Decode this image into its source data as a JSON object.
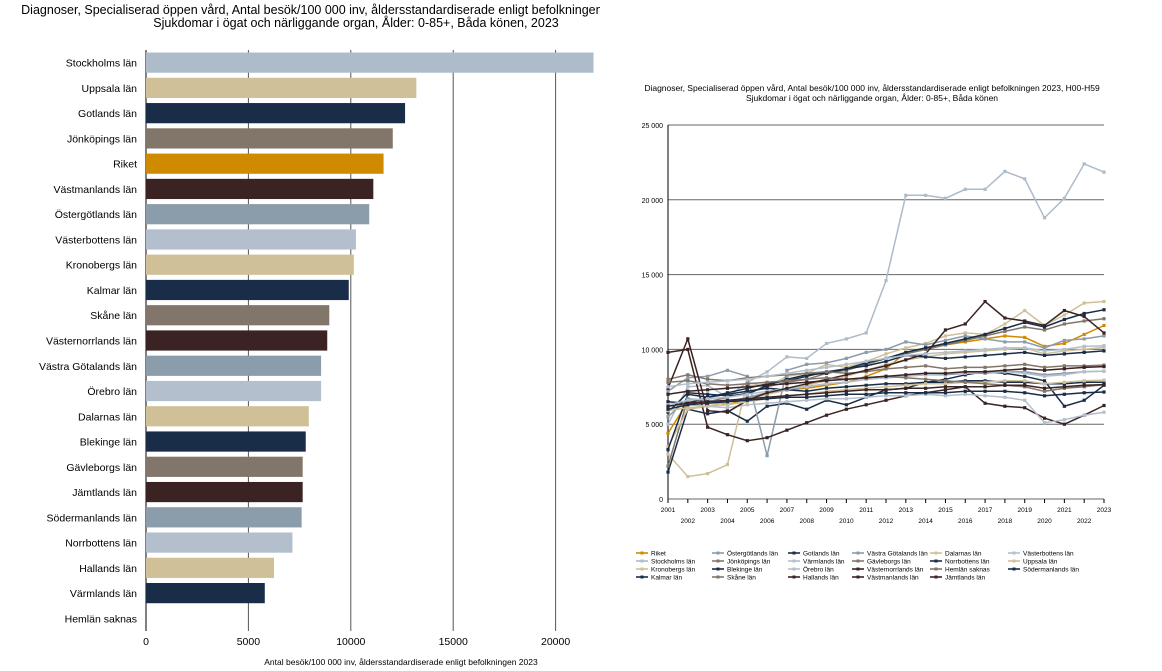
{
  "chart_data": [
    {
      "type": "bar",
      "orientation": "horizontal",
      "title": "Diagnoser, Specialiserad öppen vård, Antal besök/100 000 inv, åldersstandardiserade enligt befolkningen 2023, H00-H59",
      "subtitle": "Sjukdomar i ögat och närliggande organ, Ålder: 0-85+, Båda könen, 2023",
      "xlabel": "Antal besök/100 000 inv, åldersstandardiserade enligt befolkningen 2023",
      "xlim": [
        0,
        25000
      ],
      "xticks": [
        "0",
        "5000",
        "10000",
        "15000",
        "20000",
        "25000"
      ],
      "grid": true,
      "categories": [
        "Stockholms län",
        "Uppsala län",
        "Gotlands län",
        "Jönköpings län",
        "Riket",
        "Västmanlands län",
        "Östergötlands län",
        "Västerbottens län",
        "Kronobergs län",
        "Kalmar län",
        "Skåne län",
        "Västernorrlands län",
        "Västra Götalands län",
        "Örebro län",
        "Dalarnas län",
        "Blekinge län",
        "Gävleborgs län",
        "Jämtlands län",
        "Södermanlands län",
        "Norrbottens län",
        "Hallands län",
        "Värmlands län",
        "Hemlän saknas"
      ],
      "values": [
        21850,
        13200,
        12650,
        12050,
        11600,
        11100,
        10900,
        10250,
        10150,
        9900,
        8950,
        8850,
        8550,
        8550,
        7950,
        7800,
        7650,
        7650,
        7600,
        7150,
        6250,
        5800,
        0
      ],
      "colors": [
        "#aebbca",
        "#cfc097",
        "#192d48",
        "#82766a",
        "#d08a00",
        "#3b2323",
        "#8b9caa",
        "#b3bfcc",
        "#cfc097",
        "#192d48",
        "#82766a",
        "#3b2323",
        "#8b9caa",
        "#b3bfcc",
        "#cfc097",
        "#192d48",
        "#82766a",
        "#3b2323",
        "#8b9caa",
        "#b3bfcc",
        "#cfc097",
        "#192d48",
        "#aebbca"
      ]
    },
    {
      "type": "line",
      "title": "Diagnoser, Specialiserad öppen vård, Antal besök/100 000 inv, åldersstandardiserade enligt befolkningen 2023, H00-H59",
      "subtitle": "Sjukdomar i ögat och närliggande organ, Ålder: 0-85+, Båda könen",
      "ylim": [
        0,
        25000
      ],
      "yticks": [
        "0",
        "5 000",
        "10 000",
        "15 000",
        "20 000",
        "25 000"
      ],
      "grid": true,
      "x": [
        2001,
        2002,
        2003,
        2004,
        2005,
        2006,
        2007,
        2008,
        2009,
        2010,
        2011,
        2012,
        2013,
        2014,
        2015,
        2016,
        2017,
        2018,
        2019,
        2020,
        2021,
        2022,
        2023
      ],
      "legend_position": "bottom",
      "series": [
        {
          "name": "Riket",
          "color": "#d08a00",
          "values": [
            4400,
            6500,
            6600,
            6300,
            6700,
            7000,
            7300,
            7400,
            7600,
            7800,
            8200,
            8700,
            9800,
            10100,
            10300,
            10500,
            10700,
            10900,
            10800,
            10200,
            10400,
            11000,
            11600
          ]
        },
        {
          "name": "Stockholms län",
          "color": "#aebbca",
          "values": [
            5000,
            7500,
            7600,
            6800,
            7800,
            8500,
            9500,
            9400,
            10400,
            10700,
            11100,
            14600,
            20300,
            20300,
            20100,
            20700,
            20700,
            21900,
            21400,
            18800,
            20100,
            22400,
            21850
          ]
        },
        {
          "name": "Uppsala län",
          "color": "#cfc097",
          "values": [
            3000,
            1500,
            1700,
            2300,
            7800,
            7500,
            8200,
            8400,
            9000,
            8800,
            9200,
            9700,
            10100,
            10400,
            10900,
            11100,
            11000,
            11700,
            12600,
            11600,
            12300,
            13100,
            13200
          ]
        },
        {
          "name": "Södermanlands län",
          "color": "#192d48",
          "values": [
            1800,
            6000,
            5700,
            5900,
            5200,
            6200,
            6400,
            6000,
            6600,
            6300,
            6800,
            7300,
            7400,
            7800,
            8000,
            8300,
            8500,
            8400,
            8200,
            7900,
            6200,
            6600,
            7600
          ]
        },
        {
          "name": "Östergötlands län",
          "color": "#8b9caa",
          "values": [
            7200,
            8100,
            8200,
            8600,
            8200,
            2900,
            8600,
            9000,
            9100,
            9400,
            9800,
            10000,
            10500,
            10300,
            10600,
            10900,
            10700,
            10500,
            10500,
            10100,
            10600,
            10700,
            10900
          ]
        },
        {
          "name": "Jönköpings län",
          "color": "#82766a",
          "values": [
            2200,
            6700,
            6500,
            6800,
            7100,
            7500,
            7800,
            8000,
            8400,
            8600,
            9000,
            9400,
            9700,
            10000,
            10300,
            10600,
            10900,
            11200,
            11500,
            11300,
            11700,
            11900,
            12050
          ]
        },
        {
          "name": "Kronobergs län",
          "color": "#cfc097",
          "values": [
            3500,
            6000,
            6200,
            6500,
            6700,
            7000,
            7300,
            7600,
            7900,
            8200,
            8600,
            9000,
            9300,
            9500,
            9700,
            9800,
            9900,
            10000,
            10100,
            9700,
            9900,
            10000,
            10150
          ]
        },
        {
          "name": "Kalmar län",
          "color": "#192d48",
          "values": [
            5800,
            7100,
            7000,
            6900,
            7000,
            7600,
            8000,
            8300,
            8400,
            8700,
            8900,
            9200,
            9600,
            9500,
            9400,
            9500,
            9600,
            9700,
            9800,
            9600,
            9700,
            9800,
            9900
          ]
        },
        {
          "name": "Gotlands län",
          "color": "#192d48",
          "values": [
            3300,
            7000,
            6800,
            7100,
            7400,
            7700,
            7900,
            8200,
            8500,
            8700,
            9100,
            9400,
            9800,
            10100,
            10400,
            10700,
            11000,
            11400,
            11800,
            11500,
            12000,
            12400,
            12650
          ]
        },
        {
          "name": "Blekinge län",
          "color": "#192d48",
          "values": [
            6500,
            6400,
            6800,
            7000,
            7200,
            7400,
            7300,
            7200,
            7400,
            7500,
            7600,
            7700,
            7700,
            7800,
            7800,
            7900,
            7900,
            7800,
            7800,
            7700,
            7700,
            7800,
            7800
          ]
        },
        {
          "name": "Skåne län",
          "color": "#82766a",
          "values": [
            8000,
            8300,
            8000,
            7900,
            8100,
            8200,
            8300,
            8400,
            8500,
            8400,
            8500,
            8700,
            8800,
            8900,
            8700,
            8800,
            8800,
            8900,
            9000,
            8800,
            8900,
            8900,
            8950
          ]
        },
        {
          "name": "Hallands län",
          "color": "#3b2323",
          "values": [
            9800,
            10000,
            4800,
            4300,
            3900,
            4100,
            4600,
            5100,
            5600,
            6000,
            6300,
            6600,
            6900,
            7100,
            7300,
            7500,
            6400,
            6200,
            6100,
            5400,
            5000,
            5600,
            6250
          ]
        },
        {
          "name": "Västra Götalands län",
          "color": "#8b9caa",
          "values": [
            5500,
            6700,
            6600,
            6500,
            6800,
            7100,
            7300,
            7500,
            7700,
            7800,
            8000,
            8100,
            8200,
            8300,
            8300,
            8400,
            8400,
            8500,
            8500,
            8300,
            8400,
            8500,
            8550
          ]
        },
        {
          "name": "Värmlands län",
          "color": "#b3bfcc",
          "values": [
            6000,
            6300,
            6200,
            6100,
            6300,
            6400,
            6500,
            6600,
            6700,
            6700,
            6800,
            6900,
            6900,
            7000,
            6900,
            7000,
            6900,
            6800,
            6600,
            5100,
            5300,
            5600,
            5800
          ]
        },
        {
          "name": "Örebro län",
          "color": "#b3bfcc",
          "values": [
            6300,
            6600,
            6700,
            6800,
            7000,
            7200,
            7400,
            7500,
            7700,
            7800,
            8000,
            8100,
            8200,
            8300,
            8400,
            8400,
            8500,
            8500,
            8400,
            8200,
            8300,
            8500,
            8550
          ]
        },
        {
          "name": "Västmanlands län",
          "color": "#3b2323",
          "values": [
            7400,
            10700,
            5900,
            5800,
            6600,
            7100,
            7400,
            7700,
            8000,
            8300,
            8600,
            8900,
            9300,
            9700,
            11300,
            11700,
            13200,
            12100,
            11900,
            11600,
            12600,
            12200,
            11100
          ]
        },
        {
          "name": "Dalarnas län",
          "color": "#cfc097",
          "values": [
            5900,
            6100,
            6200,
            6300,
            6500,
            6700,
            6900,
            7000,
            7200,
            7300,
            7400,
            7500,
            7600,
            7700,
            7700,
            7800,
            7800,
            7900,
            7900,
            7700,
            7800,
            7900,
            7950
          ]
        },
        {
          "name": "Gävleborgs län",
          "color": "#82766a",
          "values": [
            7800,
            7900,
            7700,
            7600,
            7700,
            7800,
            7900,
            8000,
            8100,
            8000,
            8100,
            8200,
            8100,
            8000,
            7900,
            7800,
            7700,
            7600,
            7500,
            7200,
            7400,
            7500,
            7650
          ]
        },
        {
          "name": "Västernorrlands län",
          "color": "#3b2323",
          "values": [
            7000,
            7200,
            7300,
            7400,
            7500,
            7600,
            7700,
            7800,
            7900,
            8000,
            8100,
            8200,
            8300,
            8400,
            8400,
            8500,
            8500,
            8600,
            8700,
            8600,
            8700,
            8800,
            8850
          ]
        },
        {
          "name": "Jämtlands län",
          "color": "#3b2323",
          "values": [
            6200,
            6400,
            6500,
            6600,
            6700,
            6800,
            6900,
            7000,
            7100,
            7200,
            7300,
            7300,
            7400,
            7400,
            7500,
            7500,
            7500,
            7600,
            7600,
            7400,
            7500,
            7600,
            7650
          ]
        },
        {
          "name": "Norrbottens län",
          "color": "#192d48",
          "values": [
            6000,
            6300,
            6400,
            6500,
            6600,
            6700,
            6800,
            6800,
            6900,
            7000,
            7000,
            7100,
            7100,
            7100,
            7100,
            7200,
            7200,
            7200,
            7100,
            6900,
            7000,
            7100,
            7150
          ]
        },
        {
          "name": "Västerbottens län",
          "color": "#b3bfcc",
          "values": [
            7500,
            7700,
            7800,
            7900,
            8000,
            8200,
            8400,
            8600,
            8800,
            9000,
            9200,
            9400,
            9600,
            9700,
            9800,
            9900,
            10000,
            10100,
            10100,
            9900,
            10000,
            10200,
            10250
          ]
        },
        {
          "name": "Hemlän saknas",
          "color": "#82766a",
          "values": [
            0,
            0,
            0,
            0,
            0,
            0,
            0,
            0,
            0,
            0,
            0,
            0,
            0,
            0,
            0,
            0,
            0,
            0,
            0,
            0,
            0,
            0,
            0
          ]
        }
      ],
      "legend_order": [
        "Riket",
        "Östergötlands län",
        "Gotlands län",
        "Västra Götalands län",
        "Dalarnas län",
        "Västerbottens län",
        "Stockholms län",
        "Jönköpings län",
        "Värmlands län",
        "Gävleborgs län",
        "Norrbottens län",
        "Uppsala län",
        "Kronobergs län",
        "Blekinge län",
        "Örebro län",
        "Västernorrlands län",
        "Hemlän saknas",
        "Södermanlands län",
        "Kalmar län",
        "Skåne län",
        "Hallands län",
        "Västmanlands län",
        "Jämtlands län"
      ]
    }
  ]
}
